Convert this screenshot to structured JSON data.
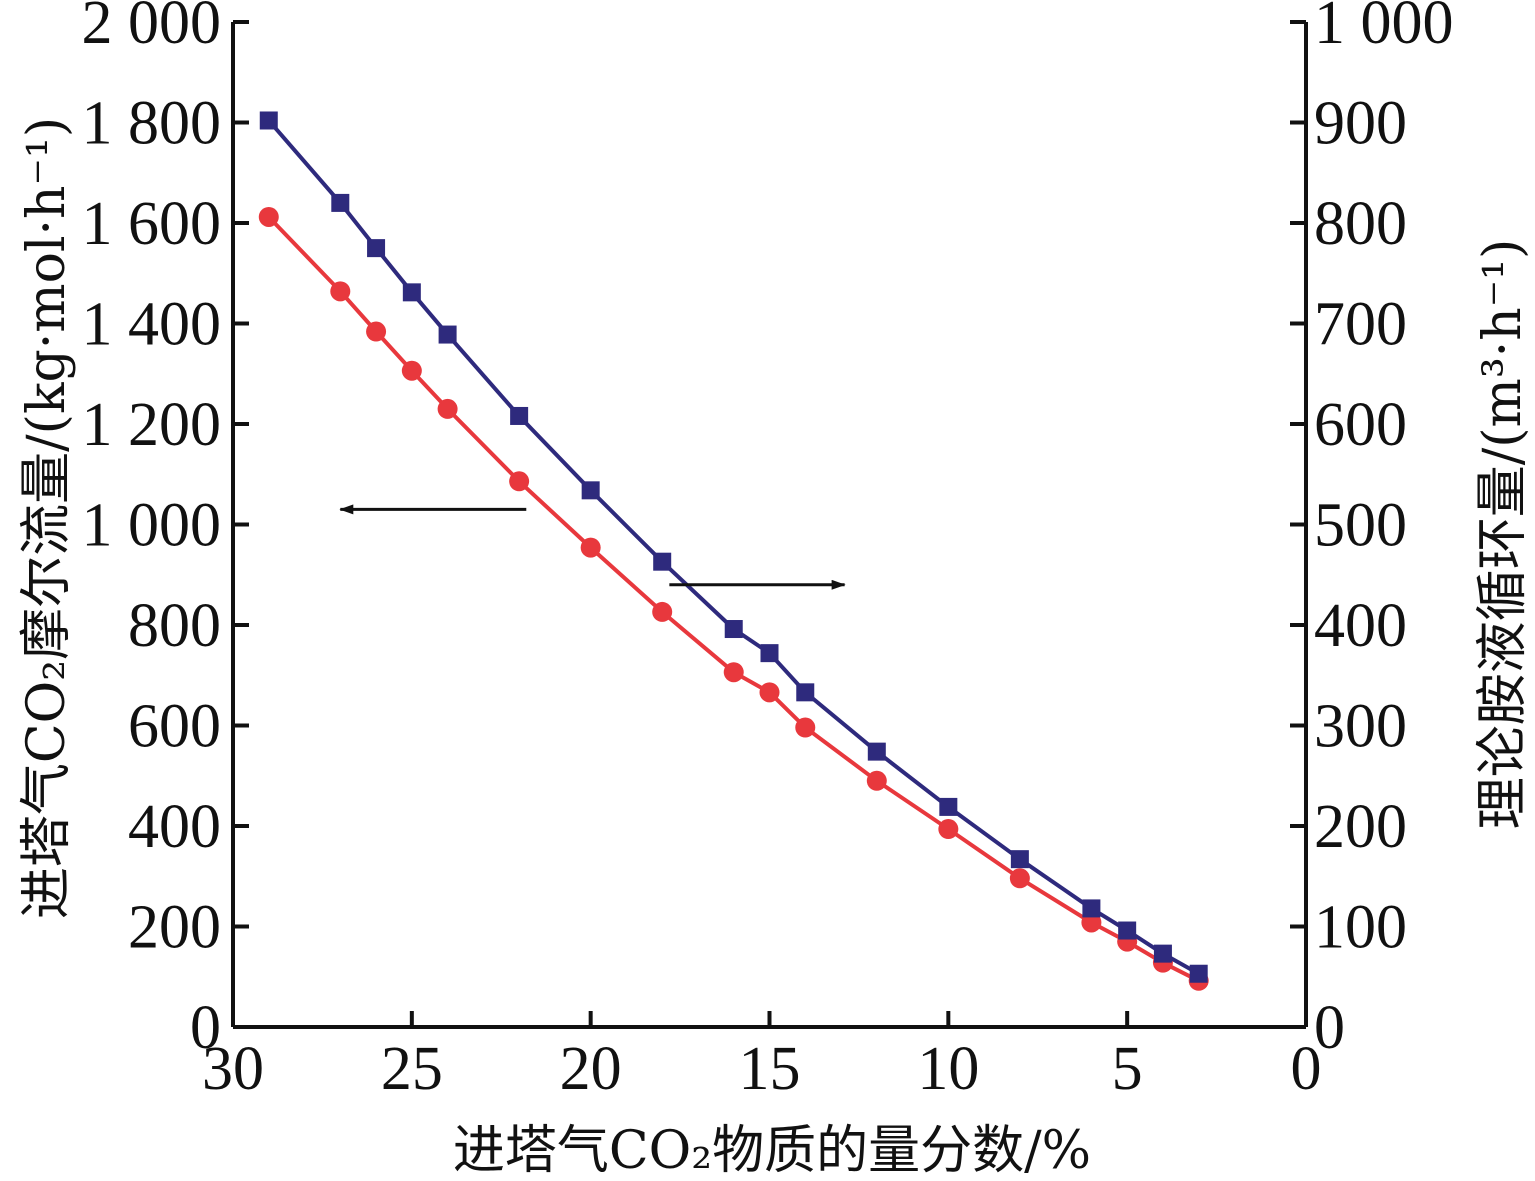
{
  "chart_data": {
    "type": "line",
    "xlabel": "进塔气CO₂物质的量分数/%",
    "ylabel_left": "进塔气CO₂摩尔流量/(kg·mol·h⁻¹)",
    "ylabel_right": "理论胺液循环量/(m³·h⁻¹)",
    "xlim": [
      30,
      0
    ],
    "ylim_left": [
      0,
      2000
    ],
    "ylim_right": [
      0,
      1000
    ],
    "x_ticks": [
      30,
      25,
      20,
      15,
      10,
      5,
      0
    ],
    "x_tick_labels": [
      "30",
      "25",
      "20",
      "15",
      "10",
      "5",
      "0"
    ],
    "y_left_ticks": [
      0,
      200,
      400,
      600,
      800,
      1000,
      1200,
      1400,
      1600,
      1800,
      2000
    ],
    "y_left_tick_labels": [
      "0",
      "200",
      "400",
      "600",
      "800",
      "1 000",
      "1 200",
      "1 400",
      "1 600",
      "1 800",
      "2 000"
    ],
    "y_right_ticks": [
      0,
      100,
      200,
      300,
      400,
      500,
      600,
      700,
      800,
      900,
      1000
    ],
    "y_right_tick_labels": [
      "0",
      "100",
      "200",
      "300",
      "400",
      "500",
      "600",
      "700",
      "800",
      "900",
      "1 000"
    ],
    "grid": false,
    "series": [
      {
        "axis": "left",
        "color": "#e8383d",
        "marker": "circle",
        "x": [
          29,
          27,
          26,
          25,
          24,
          22,
          20,
          18,
          16,
          15,
          14,
          12,
          10,
          8,
          6,
          5,
          4,
          3
        ],
        "values": [
          1612,
          1464,
          1384,
          1306,
          1230,
          1086,
          954,
          826,
          706,
          666,
          596,
          490,
          394,
          296,
          208,
          170,
          128,
          92
        ]
      },
      {
        "axis": "right",
        "color": "#2e2a7d",
        "marker": "square",
        "x": [
          29,
          27,
          26,
          25,
          24,
          22,
          20,
          18,
          16,
          15,
          14,
          12,
          10,
          8,
          6,
          5,
          4,
          3
        ],
        "values": [
          902,
          820,
          775,
          731,
          689,
          608,
          534,
          463,
          396,
          372,
          333,
          274,
          219,
          167,
          118,
          96,
          73,
          53
        ]
      }
    ],
    "annotations": [
      {
        "type": "arrow",
        "direction": "left",
        "x_from": 21.8,
        "x_to": 27.0,
        "y_left": 1030
      },
      {
        "type": "arrow",
        "direction": "right",
        "x_from": 17.8,
        "x_to": 12.9,
        "y_left": 880
      }
    ]
  }
}
